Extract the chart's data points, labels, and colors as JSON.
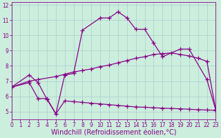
{
  "xlabel": "Windchill (Refroidissement éolien,°C)",
  "xlim": [
    0,
    23
  ],
  "ylim": [
    4.5,
    12.2
  ],
  "yticks": [
    5,
    6,
    7,
    8,
    9,
    10,
    11,
    12
  ],
  "xticks": [
    0,
    1,
    2,
    3,
    4,
    5,
    6,
    7,
    8,
    9,
    10,
    11,
    12,
    13,
    14,
    15,
    16,
    17,
    18,
    19,
    20,
    21,
    22,
    23
  ],
  "bg_color": "#cceedd",
  "grid_color": "#aacccc",
  "line_color": "#880088",
  "curve1_x": [
    0,
    2,
    3,
    4,
    5,
    6,
    7,
    8,
    10,
    11,
    12,
    13,
    14,
    15,
    16,
    17,
    19,
    20,
    22,
    23
  ],
  "curve1_y": [
    6.6,
    7.4,
    6.9,
    5.8,
    4.85,
    7.4,
    7.5,
    10.35,
    11.15,
    11.15,
    11.55,
    11.15,
    10.4,
    10.4,
    9.5,
    8.6,
    9.1,
    9.1,
    7.1,
    5.1
  ],
  "curve2_x": [
    0,
    2,
    3,
    5,
    6,
    7,
    8,
    9,
    10,
    11,
    12,
    13,
    14,
    15,
    16,
    17,
    18,
    19,
    20,
    21,
    22,
    23
  ],
  "curve2_y": [
    6.6,
    7.0,
    7.1,
    7.3,
    7.45,
    7.6,
    7.7,
    7.8,
    7.95,
    8.05,
    8.2,
    8.35,
    8.5,
    8.6,
    8.75,
    8.8,
    8.85,
    8.75,
    8.65,
    8.5,
    8.3,
    5.1
  ],
  "curve3_x": [
    0,
    2,
    3,
    4,
    5,
    6,
    7,
    8,
    9,
    10,
    11,
    12,
    13,
    14,
    15,
    16,
    17,
    18,
    19,
    20,
    21,
    22,
    23
  ],
  "curve3_y": [
    6.6,
    6.9,
    5.85,
    5.85,
    4.85,
    5.7,
    5.65,
    5.6,
    5.55,
    5.5,
    5.45,
    5.4,
    5.35,
    5.3,
    5.28,
    5.25,
    5.22,
    5.2,
    5.18,
    5.15,
    5.12,
    5.1,
    5.08
  ],
  "marker": "+",
  "marker_size": 4,
  "line_width": 0.9,
  "tick_fontsize": 5.5,
  "label_fontsize": 7.0
}
